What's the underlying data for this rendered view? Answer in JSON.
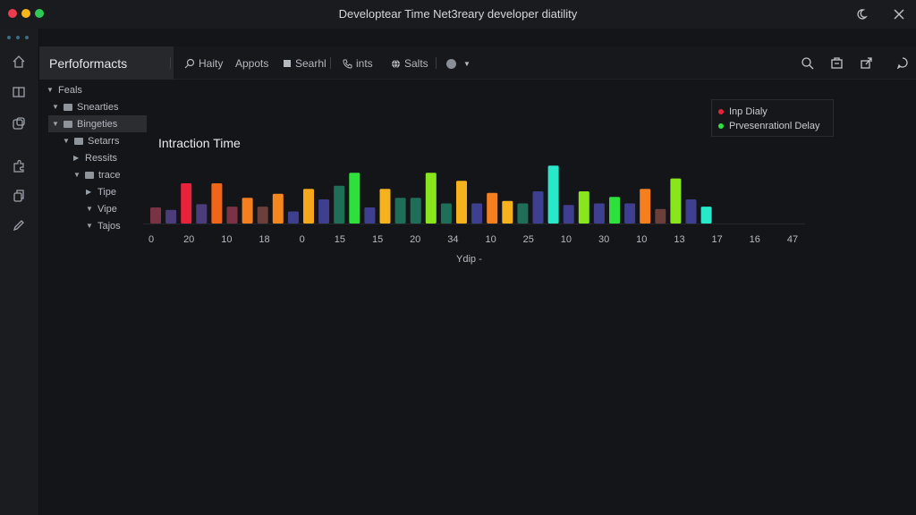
{
  "window": {
    "title": "Developtear Time Net3reary developer diatility"
  },
  "toolbar": {
    "active_tab": "Perfoformacts",
    "items": [
      {
        "label": "Haity",
        "icon": "search-icon"
      },
      {
        "label": "Appots",
        "icon": ""
      },
      {
        "label": "Searhl",
        "icon": "card-icon"
      },
      {
        "label": "ints",
        "icon": "phone-icon"
      },
      {
        "label": "Salts",
        "icon": "globe-icon"
      },
      {
        "label": "",
        "icon": "circle-dropdown-icon"
      }
    ]
  },
  "tree": {
    "items": [
      {
        "label": "Feals",
        "depth": 0,
        "folder": false
      },
      {
        "label": "Snearties",
        "depth": 1,
        "folder": true
      },
      {
        "label": "Bingeties",
        "depth": 1,
        "folder": true,
        "selected": true
      },
      {
        "label": "Setarrs",
        "depth": 2,
        "folder": true
      },
      {
        "label": "Ressits",
        "depth": 3,
        "folder": false
      },
      {
        "label": "trace",
        "depth": 3,
        "folder": true
      },
      {
        "label": "Tipe",
        "depth": 4,
        "folder": false
      },
      {
        "label": "Vipe",
        "depth": 4,
        "folder": false
      },
      {
        "label": "Tajos",
        "depth": 4,
        "folder": false
      }
    ]
  },
  "chart_data": {
    "type": "bar",
    "title": "Intraction Time",
    "xlabel": "Ydip -",
    "ylabel": "",
    "legend_position": "top-right",
    "legend": [
      {
        "name": "Inp Dialy",
        "color": "#e8223a"
      },
      {
        "name": "Prvesenrationl Delay",
        "color": "#2ee03c"
      }
    ],
    "tick_labels": [
      "0",
      "20",
      "10",
      "18",
      "0",
      "15",
      "15",
      "20",
      "34",
      "10",
      "25",
      "10",
      "30",
      "10",
      "13",
      "17",
      "16",
      "47"
    ],
    "values": [
      20,
      17,
      50,
      24,
      50,
      21,
      32,
      21,
      37,
      15,
      43,
      30,
      47,
      63,
      20,
      43,
      32,
      32,
      63,
      25,
      53,
      25,
      38,
      28,
      25,
      40,
      72,
      23,
      40,
      25,
      33,
      25,
      43,
      18,
      56,
      30,
      21
    ],
    "colors": [
      "#7a3344",
      "#4a3d7a",
      "#e8223a",
      "#4a3d7a",
      "#f26518",
      "#7a3344",
      "#f57f1f",
      "#6b3f3a",
      "#f5871e",
      "#3f3f8f",
      "#f5a81a",
      "#3f3f8f",
      "#1f6e57",
      "#2ee03c",
      "#3f3f8f",
      "#f5b21c",
      "#1f6e57",
      "#1f6e57",
      "#8ae61c",
      "#1f6e57",
      "#f5b21c",
      "#3f3f8f",
      "#f57f1f",
      "#f5b21c",
      "#1f6e57",
      "#3f3f8f",
      "#27e8c8",
      "#3f3f8f",
      "#8ae61c",
      "#3f3f8f",
      "#2ee03c",
      "#3f3f8f",
      "#f57f1f",
      "#6b3f3a",
      "#8ae61c",
      "#3f3f8f",
      "#27e8c8"
    ],
    "ylim": [
      0,
      80
    ],
    "grid": false
  }
}
